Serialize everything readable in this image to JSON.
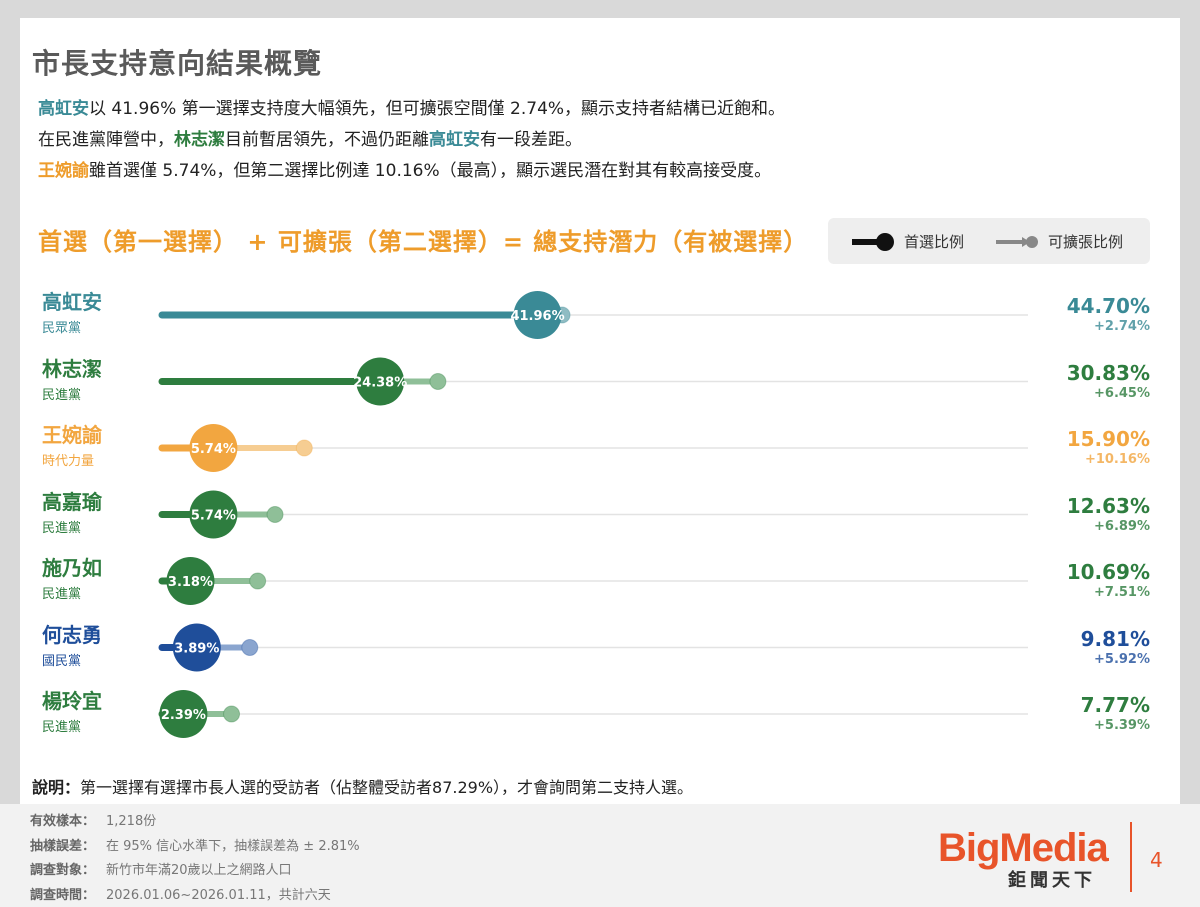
{
  "page": {
    "title": "市長支持意向結果概覽",
    "page_number": "4"
  },
  "summary": {
    "line1_name": "高虹安",
    "line1_text": "以 41.96% 第一選擇支持度大幅領先，但可擴張空間僅 2.74%，顯示支持者結構已近飽和。",
    "line2_pre": "在民進黨陣營中，",
    "line2_name1": "林志潔",
    "line2_mid": "目前暫居領先，不過仍距離",
    "line2_name2": "高虹安",
    "line2_post": "有一段差距。",
    "line3_name": "王婉諭",
    "line3_text": "雖首選僅 5.74%，但第二選擇比例達 10.16%（最高），顯示選民潛在對其有較高接受度。"
  },
  "formula": "首選（第一選擇） + 可擴張（第二選擇）= 總支持潛力（有被選擇）",
  "legend": {
    "first_label": "首選比例",
    "second_label": "可擴張比例"
  },
  "chart_data": {
    "type": "bar",
    "title": "首選（第一選擇） + 可擴張（第二選擇）= 總支持潛力（有被選擇）",
    "xlim": [
      0,
      60
    ],
    "series_names": [
      "首選比例",
      "可擴張比例"
    ],
    "candidates": [
      {
        "name": "高虹安",
        "party": "民眾黨",
        "first": 41.96,
        "first_label": "41.96%",
        "expand": 2.74,
        "expand_label": "+2.74%",
        "total": 44.7,
        "total_label": "44.70%",
        "color": "#3a8a96",
        "light": "#8fbcc3"
      },
      {
        "name": "林志潔",
        "party": "民進黨",
        "first": 24.38,
        "first_label": "24.38%",
        "expand": 6.45,
        "expand_label": "+6.45%",
        "total": 30.83,
        "total_label": "30.83%",
        "color": "#2e7d3f",
        "light": "#8fbf98"
      },
      {
        "name": "王婉諭",
        "party": "時代力量",
        "first": 5.74,
        "first_label": "5.74%",
        "expand": 10.16,
        "expand_label": "+10.16%",
        "total": 15.9,
        "total_label": "15.90%",
        "color": "#f2a640",
        "light": "#f6cd92"
      },
      {
        "name": "高嘉瑜",
        "party": "民進黨",
        "first": 5.74,
        "first_label": "5.74%",
        "expand": 6.89,
        "expand_label": "+6.89%",
        "total": 12.63,
        "total_label": "12.63%",
        "color": "#2e7d3f",
        "light": "#8fbf98"
      },
      {
        "name": "施乃如",
        "party": "民進黨",
        "first": 3.18,
        "first_label": "3.18%",
        "expand": 7.51,
        "expand_label": "+7.51%",
        "total": 10.69,
        "total_label": "10.69%",
        "color": "#2e7d3f",
        "light": "#8fbf98"
      },
      {
        "name": "何志勇",
        "party": "國民黨",
        "first": 3.89,
        "first_label": "3.89%",
        "expand": 5.92,
        "expand_label": "+5.92%",
        "total": 9.81,
        "total_label": "9.81%",
        "color": "#1f4e9a",
        "light": "#8aa5cf"
      },
      {
        "name": "楊玲宜",
        "party": "民進黨",
        "first": 2.39,
        "first_label": "2.39%",
        "expand": 5.39,
        "expand_label": "+5.39%",
        "total": 7.77,
        "total_label": "7.77%",
        "color": "#2e7d3f",
        "light": "#8fbf98"
      }
    ]
  },
  "note": {
    "label": "說明：",
    "text": "第一選擇有選擇市長人選的受訪者（佔整體受訪者87.29%），才會詢問第二支持人選。"
  },
  "meta": [
    {
      "key": "有效樣本：",
      "value": "1,218份"
    },
    {
      "key": "抽樣誤差：",
      "value": "在 95% 信心水準下，抽樣誤差為 ± 2.81%"
    },
    {
      "key": "調查對象：",
      "value": "新竹市年滿20歲以上之網路人口"
    },
    {
      "key": "調查時間：",
      "value": "2026.01.06~2026.01.11，共計六天"
    }
  ],
  "brand": {
    "name": "BigMedia",
    "sub": "鉅聞天下"
  }
}
